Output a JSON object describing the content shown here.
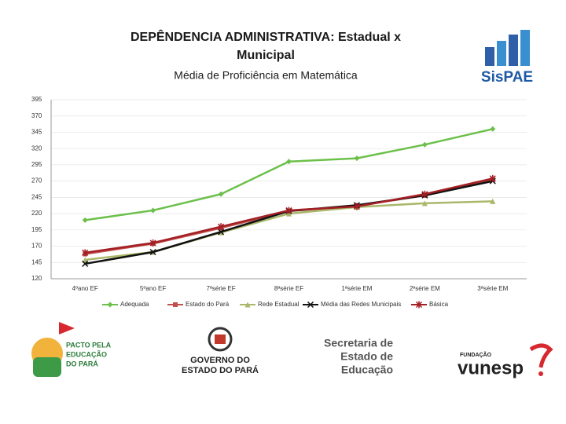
{
  "chart_data": {
    "type": "line",
    "title_lines": [
      "DEPÊNDENCIA ADMINISTRATIVA: Estadual x",
      "Municipal"
    ],
    "subtitle": "Média de Proficiência em Matemática",
    "categories": [
      "4ºano EF",
      "5ºano EF",
      "7ªsérie EF",
      "8ªsérie EF",
      "1ªsérie EM",
      "2ªsérie EM",
      "3ªsérie EM"
    ],
    "series": [
      {
        "name": "Adequada",
        "color": "#6cc04a",
        "marker": "diamond",
        "values": [
          210,
          225,
          250,
          300,
          305,
          326,
          350
        ]
      },
      {
        "name": "Estado do Pará",
        "color": "#c0504d",
        "marker": "square",
        "values": [
          158,
          174,
          198,
          224,
          232,
          248,
          272
        ]
      },
      {
        "name": "Rede Estadual",
        "color": "#a9b86a",
        "marker": "triangle",
        "values": [
          149,
          161,
          191,
          220,
          230,
          236,
          239
        ]
      },
      {
        "name": "Média das Redes Municipais",
        "color": "#111111",
        "marker": "x",
        "values": [
          143,
          161,
          192,
          224,
          233,
          248,
          270
        ]
      },
      {
        "name": "Básica",
        "color": "#a31f24",
        "marker": "star",
        "values": [
          160,
          175,
          200,
          225,
          231,
          250,
          274
        ]
      }
    ],
    "ylim": [
      120,
      395
    ],
    "yticks": [
      120,
      145,
      170,
      195,
      220,
      245,
      270,
      295,
      320,
      345,
      370,
      395
    ],
    "grid": true,
    "legend": "bottom"
  },
  "logos": {
    "sispae": "SisPAE",
    "pacto": [
      "PACTO PELA",
      "EDUCAÇÃO",
      "DO PARÁ"
    ],
    "governo": [
      "GOVERNO DO",
      "ESTADO DO PARÁ"
    ],
    "secretaria": [
      "Secretaria de",
      "Estado de",
      "Educação"
    ],
    "fundacao": "FUNDAÇÃO",
    "vunesp": "vunesp"
  }
}
